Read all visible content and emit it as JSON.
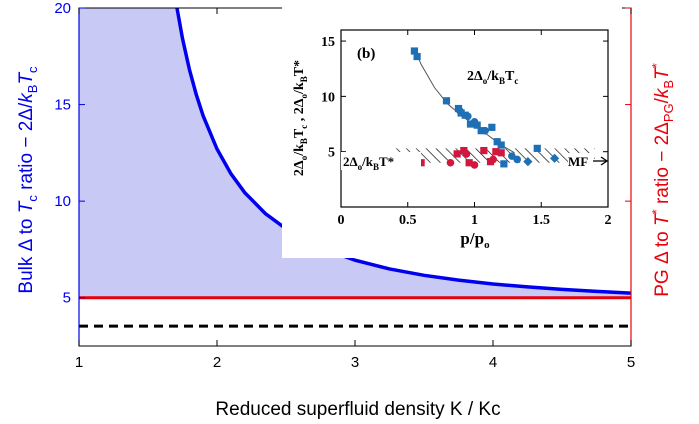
{
  "chart_data": [
    {
      "type": "line",
      "xlabel": "Reduced superfluid density K / Kc",
      "ylabel_left": {
        "pre": "Bulk Δ to ",
        "sym": "T",
        "sub": "c",
        "post": " ratio − 2Δ/",
        "sym2": "k",
        "sub2": "B",
        "sym3": "T",
        "sub3": "c"
      },
      "ylabel_right": {
        "pre": "PG Δ to ",
        "sym": "T",
        "sup": "*",
        "post": " ratio − 2Δ",
        "sub": "PG",
        "post2": "/",
        "sym2": "k",
        "sub2": "B",
        "sym3": "T",
        "sup3": "*"
      },
      "xlim": [
        1,
        5
      ],
      "ylim": [
        2.5,
        20
      ],
      "x_ticks": [
        1,
        2,
        3,
        4,
        5
      ],
      "y_ticks": [
        5,
        10,
        15,
        20
      ],
      "tick_labels_x": [
        "1",
        "2",
        "3",
        "4",
        "5"
      ],
      "tick_labels_y": [
        "5",
        "10",
        "15",
        "20"
      ],
      "colors": {
        "curve": "#0000ee",
        "fill": "#c9c9f5",
        "pg_line": "#e8000b",
        "dashed": "#000000",
        "left_axis": "#0000ee",
        "right_axis": "#e8000b"
      },
      "series": [
        {
          "kind": "curve",
          "x": [
            1.71,
            1.75,
            1.8,
            1.85,
            1.9,
            2.0,
            2.1,
            2.2,
            2.35,
            2.5,
            2.75,
            3.0,
            3.25,
            3.5,
            3.75,
            4.0,
            4.25,
            4.5,
            4.75,
            5.0
          ],
          "y": [
            20.0,
            18.42,
            16.82,
            15.51,
            14.41,
            12.7,
            11.43,
            10.45,
            9.36,
            8.57,
            7.59,
            6.94,
            6.49,
            6.16,
            5.91,
            5.71,
            5.56,
            5.43,
            5.33,
            5.24
          ]
        },
        {
          "kind": "hline",
          "y": 5.0
        },
        {
          "kind": "hline-dashed",
          "y": 3.53
        }
      ]
    },
    {
      "type": "scatter",
      "panel_label": "(b)",
      "xlabel": {
        "main": "p/p",
        "sub": "o"
      },
      "ylabel": {
        "a": "2Δ",
        "a_sub": "o",
        "b": "/k",
        "b_sub": "B",
        "c": "T",
        "c_sub": "c",
        "sep": " , ",
        "d": "2Δ",
        "d_sub": "o",
        "e": "/k",
        "e_sub": "B",
        "f": "T*"
      },
      "xlim": [
        0,
        2
      ],
      "ylim": [
        0,
        16
      ],
      "x_ticks": [
        0,
        0.5,
        1,
        1.5,
        2
      ],
      "y_ticks": [
        5,
        10,
        15
      ],
      "tick_labels_x": [
        "0",
        "0.5",
        "1",
        "1.5",
        "2"
      ],
      "tick_labels_y": [
        "5",
        "10",
        "15"
      ],
      "annotations": {
        "tc": {
          "a": "2Δ",
          "a_sub": "o",
          "b": "/k",
          "b_sub": "B",
          "c": "T",
          "c_sub": "c"
        },
        "tstar": {
          "a": "2Δ",
          "a_sub": "o",
          "b": "/k",
          "b_sub": "B",
          "c": "T*"
        },
        "mf": "MF"
      },
      "hatched_band": {
        "y_range": [
          4.0,
          5.3
        ]
      },
      "colors": {
        "blue": "#1f6fb4",
        "red": "#d2173f"
      },
      "series": [
        {
          "kind": "blue-square",
          "x": [
            0.55,
            0.57,
            0.79,
            0.88,
            0.9,
            0.93,
            0.97,
            1.02,
            1.05,
            1.13,
            1.17,
            1.2,
            1.22,
            1.47
          ],
          "y": [
            14.1,
            13.6,
            9.6,
            8.9,
            8.5,
            8.3,
            7.5,
            7.4,
            6.9,
            7.2,
            5.9,
            5.6,
            3.9,
            5.3
          ]
        },
        {
          "kind": "blue-circle",
          "x": [
            0.89,
            0.95,
            1.0,
            1.08,
            1.28,
            1.32
          ],
          "y": [
            8.7,
            8.2,
            7.7,
            6.9,
            4.6,
            4.3
          ]
        },
        {
          "kind": "blue-diamond",
          "x": [
            1.4,
            1.6
          ],
          "y": [
            4.1,
            4.4
          ]
        },
        {
          "kind": "red-square",
          "x": [
            0.57,
            0.6,
            0.87,
            0.92,
            0.96,
            1.07,
            1.12,
            1.16,
            1.2
          ],
          "y": [
            3.9,
            4.0,
            4.8,
            5.1,
            4.0,
            5.1,
            4.1,
            5.0,
            4.9
          ]
        },
        {
          "kind": "red-circle",
          "x": [
            0.82,
            0.94,
            1.0,
            1.14
          ],
          "y": [
            4.0,
            4.8,
            3.8,
            4.3
          ]
        },
        {
          "kind": "trend",
          "x": [
            0.55,
            0.6,
            0.7,
            0.8,
            0.9,
            1.0,
            1.1,
            1.2,
            1.3
          ],
          "y": [
            14.3,
            12.9,
            10.8,
            9.3,
            8.3,
            7.4,
            6.5,
            5.6,
            4.9
          ]
        }
      ]
    }
  ]
}
